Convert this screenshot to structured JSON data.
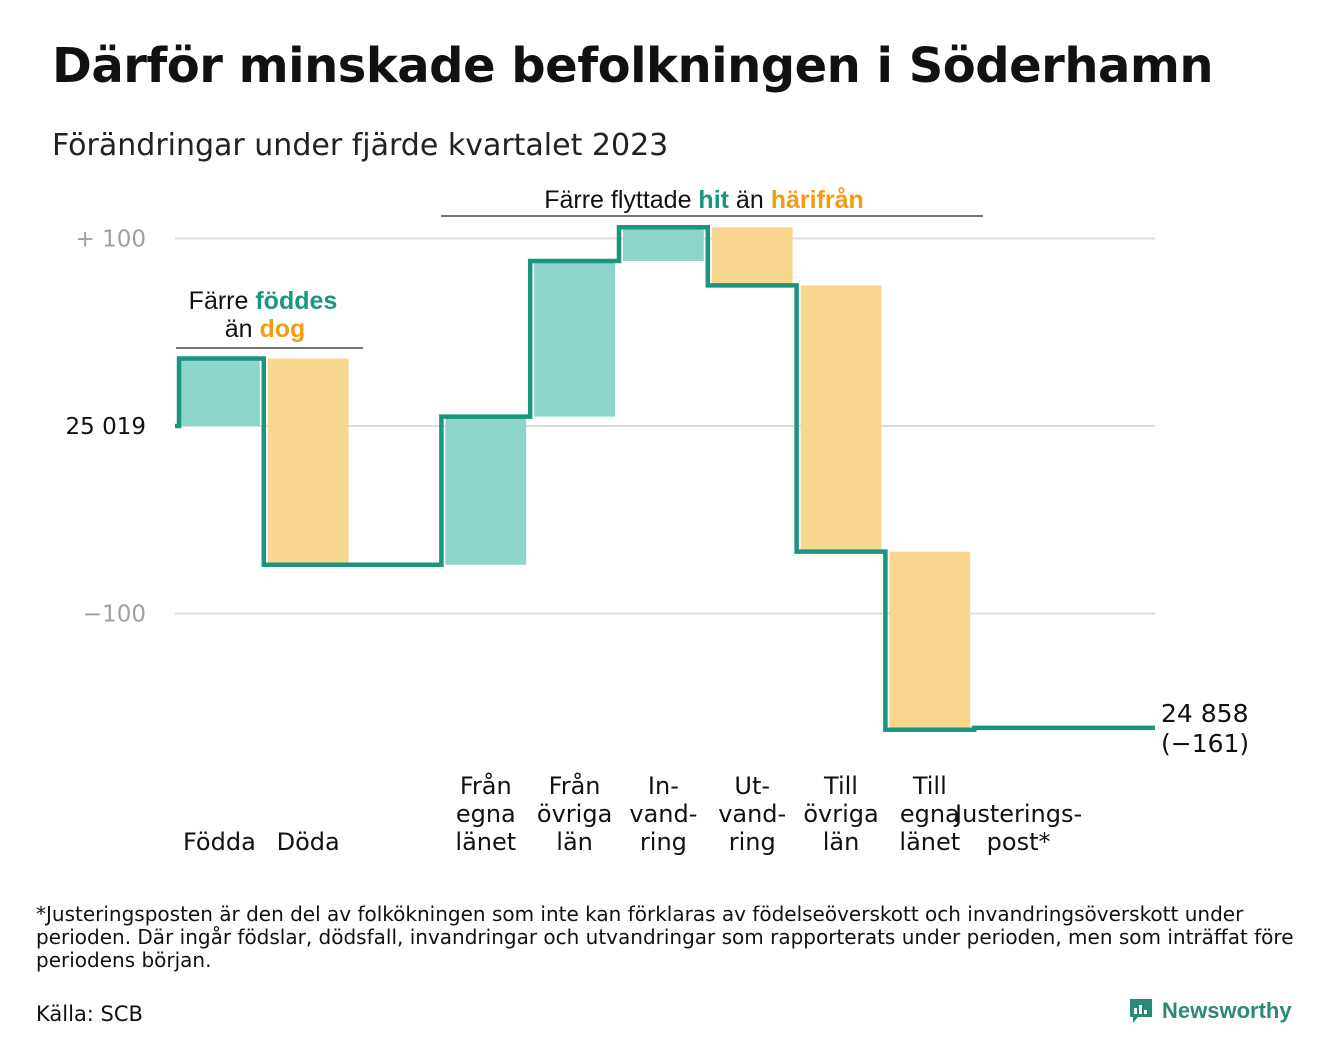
{
  "title": "Därför minskade befolkningen i Söderhamn",
  "subtitle": "Förändringar under fjärde kvartalet 2023",
  "colors": {
    "increase": "#8dd5cb",
    "decrease": "#f9d68f",
    "line": "#1a9580",
    "teal_text": "#1a9580",
    "orange_text": "#f39c12",
    "grid": "#dddddd",
    "axis_text": "#a0a0a0"
  },
  "annotations": {
    "births_deaths": {
      "line1_pre": "Färre",
      "line1_hl": "föddes",
      "line2_pre": "än",
      "line2_hl": "dog"
    },
    "migration": {
      "pre": "Färre flyttade",
      "hl1": "hit",
      "mid": "än",
      "hl2": "härifrån"
    }
  },
  "chart_data": {
    "type": "waterfall",
    "start_value": 25019,
    "start_label": "25  019",
    "yaxis": {
      "ylim": [
        -175,
        105
      ],
      "ticks": [
        {
          "value": 100,
          "label": "+  100"
        },
        {
          "value": 0,
          "label": "25  019"
        },
        {
          "value": -100,
          "label": "−100"
        }
      ],
      "grid": true
    },
    "steps": [
      {
        "category": "Födda",
        "label_lines": [
          "Födda"
        ],
        "change": 36,
        "kind": "increase"
      },
      {
        "category": "Döda",
        "label_lines": [
          "Döda"
        ],
        "change": -110,
        "kind": "decrease"
      },
      {
        "category": "",
        "label_lines": [],
        "change": 0,
        "kind": "gap"
      },
      {
        "category": "Från egna länet",
        "label_lines": [
          "Från",
          "egna",
          "länet"
        ],
        "change": 79,
        "kind": "increase"
      },
      {
        "category": "Från övriga län",
        "label_lines": [
          "Från",
          "övriga",
          "län"
        ],
        "change": 83,
        "kind": "increase"
      },
      {
        "category": "Invandring",
        "label_lines": [
          "In-",
          "vand-",
          "ring"
        ],
        "change": 18,
        "kind": "increase"
      },
      {
        "category": "Utvandring",
        "label_lines": [
          "Ut-",
          "vand-",
          "ring"
        ],
        "change": -31,
        "kind": "decrease"
      },
      {
        "category": "Till övriga län",
        "label_lines": [
          "Till",
          "övriga",
          "län"
        ],
        "change": -142,
        "kind": "decrease"
      },
      {
        "category": "Till egna länet",
        "label_lines": [
          "Till",
          "egna",
          "länet"
        ],
        "change": -95,
        "kind": "decrease"
      },
      {
        "category": "Justeringspost*",
        "label_lines": [
          "Justerings-",
          "post*"
        ],
        "change": 1,
        "kind": "adjustment"
      }
    ],
    "end_value": 24858,
    "end_label": "24 858",
    "end_change_label": "(−161)"
  },
  "footnote": "*Justeringsposten är den del av folkökningen som inte kan förklaras av födelseöverskott och invandringsöverskott under perioden. Där ingår födslar, dödsfall, invandringar och utvandringar som rapporterats under perioden, men som inträffat före periodens början.",
  "source": "Källa: SCB",
  "brand": {
    "name": "Newsworthy",
    "icon": "newsworthy-logo-icon"
  }
}
